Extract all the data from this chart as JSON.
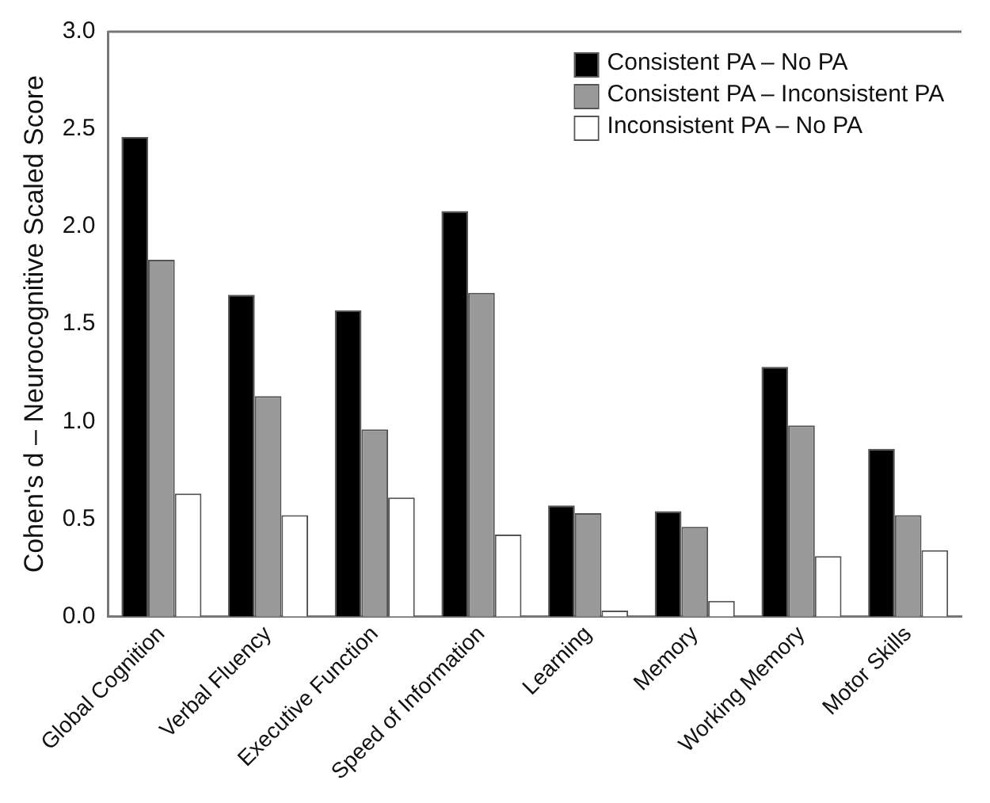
{
  "chart_data": {
    "type": "bar",
    "ylabel": "Cohen's d – Neurocognitive Scaled Score",
    "categories": [
      "Global Cognition",
      "Verbal Fluency",
      "Executive Function",
      "Speed of Information",
      "Learning",
      "Memory",
      "Working Memory",
      "Motor Skills"
    ],
    "series": [
      {
        "name": "Consistent PA – No PA",
        "color": "#000000",
        "values": [
          2.46,
          1.65,
          1.57,
          2.08,
          0.57,
          0.54,
          1.28,
          0.86
        ]
      },
      {
        "name": "Consistent PA – Inconsistent PA",
        "color": "#999999",
        "values": [
          1.83,
          1.13,
          0.96,
          1.66,
          0.53,
          0.46,
          0.98,
          0.52
        ]
      },
      {
        "name": "Inconsistent PA – No PA",
        "color": "#ffffff",
        "values": [
          0.63,
          0.52,
          0.61,
          0.42,
          0.03,
          0.08,
          0.31,
          0.34
        ]
      }
    ],
    "ylim": [
      0,
      3
    ],
    "yticks": [
      {
        "value": 0,
        "label": "0.0"
      },
      {
        "value": 0.5,
        "label": "0.5"
      },
      {
        "value": 1,
        "label": "1.0"
      },
      {
        "value": 1.5,
        "label": "1.5"
      },
      {
        "value": 2,
        "label": "2.0"
      },
      {
        "value": 2.5,
        "label": "2.5"
      },
      {
        "value": 3,
        "label": "3.0"
      }
    ],
    "grid": false,
    "legend": "top right"
  }
}
